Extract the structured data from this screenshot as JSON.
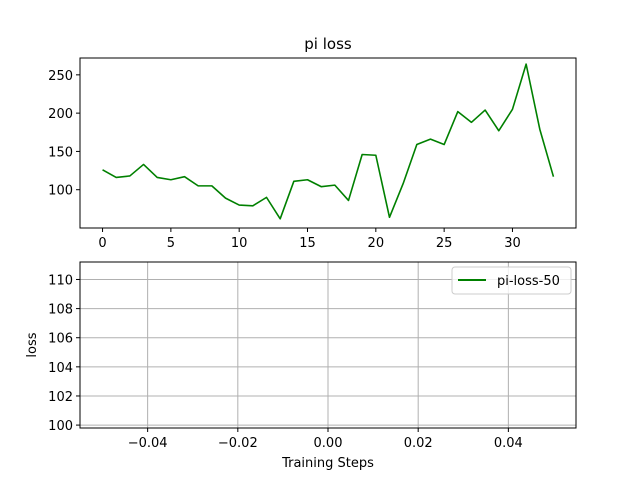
{
  "chart_data": [
    {
      "type": "line",
      "title": "pi loss",
      "xlabel": "",
      "ylabel": "",
      "xlim": [
        -1.65,
        34.65
      ],
      "ylim": [
        50,
        272
      ],
      "xticks": [
        0,
        5,
        10,
        15,
        20,
        25,
        30
      ],
      "yticks": [
        100,
        150,
        200,
        250
      ],
      "grid": false,
      "legend": "none",
      "series": [
        {
          "color": "#008000",
          "x": [
            0,
            1,
            2,
            3,
            4,
            5,
            6,
            7,
            8,
            9,
            10,
            11,
            12,
            13,
            14,
            15,
            16,
            17,
            18,
            19,
            20,
            21,
            22,
            23,
            24,
            25,
            26,
            27,
            28,
            29,
            30,
            31,
            32,
            33
          ],
          "y": [
            126,
            116,
            118,
            133,
            116,
            113,
            117,
            105,
            105,
            89,
            80,
            79,
            90,
            62,
            111,
            113,
            104,
            106,
            86,
            146,
            145,
            64,
            108,
            159,
            166,
            159,
            202,
            188,
            204,
            177,
            205,
            264,
            179,
            117
          ]
        }
      ]
    },
    {
      "type": "line",
      "title": "",
      "xlabel": "Training Steps",
      "ylabel": "loss",
      "xlim": [
        -0.055,
        0.055
      ],
      "ylim": [
        99.8,
        111.2
      ],
      "xticks": [
        -0.04,
        -0.02,
        0.0,
        0.02,
        0.04
      ],
      "xtick_labels": [
        "−0.04",
        "−0.02",
        "0.00",
        "0.02",
        "0.04"
      ],
      "yticks": [
        100,
        102,
        104,
        106,
        108,
        110
      ],
      "grid": true,
      "legend": "top-right",
      "series": [
        {
          "name": "pi-loss-50",
          "color": "#008000",
          "x": [],
          "y": []
        }
      ]
    }
  ]
}
